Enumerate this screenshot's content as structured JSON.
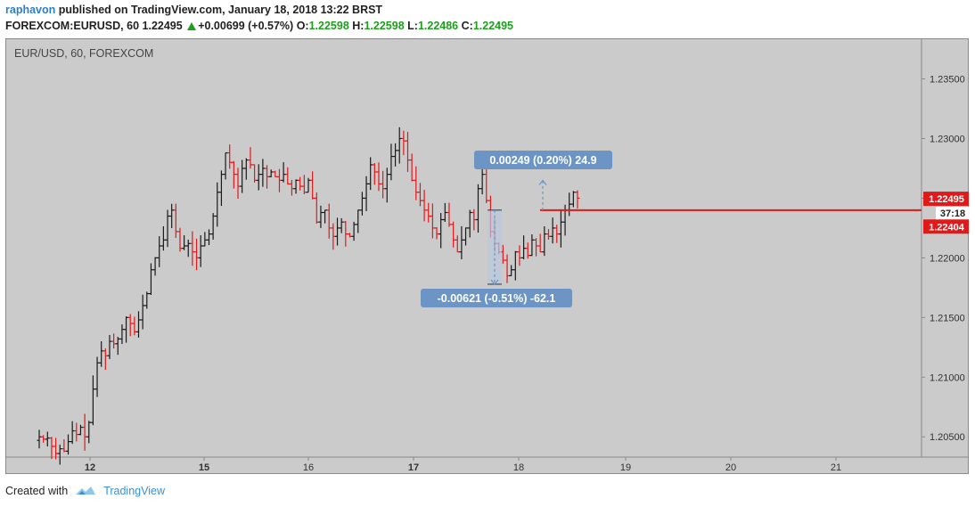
{
  "header": {
    "author": "raphavon",
    "published_text": "published on TradingView.com, January 18, 2018 13:22 BRST",
    "symbol": "FOREXCOM:EURUSD, 60",
    "price": "1.22495",
    "change": "+0.00699 (+0.57%)",
    "o_label": "O:",
    "o_value": "1.22598",
    "h_label": "H:",
    "h_value": "1.22598",
    "l_label": "L:",
    "l_value": "1.22486",
    "c_label": "C:",
    "c_value": "1.22495"
  },
  "chart": {
    "legend": "EUR/USD, 60, FOREXCOM",
    "countdown": "37:18",
    "colors": {
      "up": "#1a1a1a",
      "down": "#e0191a",
      "background": "#cbcbcb",
      "price_line": "#e0191a",
      "measure": "#6c95c5"
    }
  },
  "chart_data": {
    "type": "ohlc",
    "x_ticks": [
      "12",
      "15",
      "16",
      "17",
      "18",
      "19",
      "20",
      "21"
    ],
    "y_ticks": [
      "1.23500",
      "1.23000",
      "1.22500",
      "1.22000",
      "1.21500",
      "1.21000",
      "1.20500"
    ],
    "ylim": [
      1.2033,
      1.2384
    ],
    "grid": false,
    "price_labels": [
      {
        "text": "1.22495",
        "value": 1.22495
      },
      {
        "text": "1.22404",
        "value": 1.22404
      }
    ],
    "horizontal_line": 1.224,
    "measurements": [
      {
        "text": "0.00249 (0.20%) 24.9",
        "from": 1.224,
        "to": 1.22649
      },
      {
        "text": "-0.00621 (-0.51%) -62.1",
        "from": 1.224,
        "to": 1.21779
      }
    ],
    "bars_close_path": [
      1.205,
      1.2048,
      1.2049,
      1.2042,
      1.2036,
      1.204,
      1.2038,
      1.2046,
      1.2055,
      1.2052,
      1.2058,
      1.205,
      1.2062,
      1.209,
      1.2112,
      1.2122,
      1.2118,
      1.213,
      1.2128,
      1.2132,
      1.214,
      1.215,
      1.2145,
      1.2138,
      1.2148,
      1.216,
      1.217,
      1.219,
      1.22,
      1.221,
      1.2215,
      1.2235,
      1.224,
      1.2222,
      1.2208,
      1.221,
      1.2212,
      1.2205,
      1.22,
      1.221,
      1.2215,
      1.222,
      1.2235,
      1.2255,
      1.227,
      1.2288,
      1.228,
      1.227,
      1.226,
      1.2275,
      1.2282,
      1.2278,
      1.2265,
      1.227,
      1.2275,
      1.2268,
      1.2272,
      1.2268,
      1.2265,
      1.227,
      1.2262,
      1.2258,
      1.2265,
      1.226,
      1.2255,
      1.2265,
      1.225,
      1.223,
      1.2238,
      1.224,
      1.2225,
      1.2218,
      1.2225,
      1.223,
      1.222,
      1.2218,
      1.2228,
      1.224,
      1.225,
      1.2262,
      1.2278,
      1.2272,
      1.2262,
      1.2258,
      1.227,
      1.2285,
      1.229,
      1.23,
      1.2298,
      1.2282,
      1.2265,
      1.2255,
      1.2248,
      1.224,
      1.2235,
      1.2225,
      1.222,
      1.2232,
      1.2238,
      1.2228,
      1.2215,
      1.2205,
      1.2215,
      1.2225,
      1.2238,
      1.2232,
      1.2258,
      1.227,
      1.2248,
      1.2222,
      1.2212,
      1.2205,
      1.2198,
      1.2185,
      1.219,
      1.2205,
      1.22,
      1.2208,
      1.2202,
      1.2215,
      1.221,
      1.2205,
      1.222,
      1.2218,
      1.2225,
      1.222,
      1.223,
      1.224,
      1.2245,
      1.2255,
      1.225
    ]
  }
}
